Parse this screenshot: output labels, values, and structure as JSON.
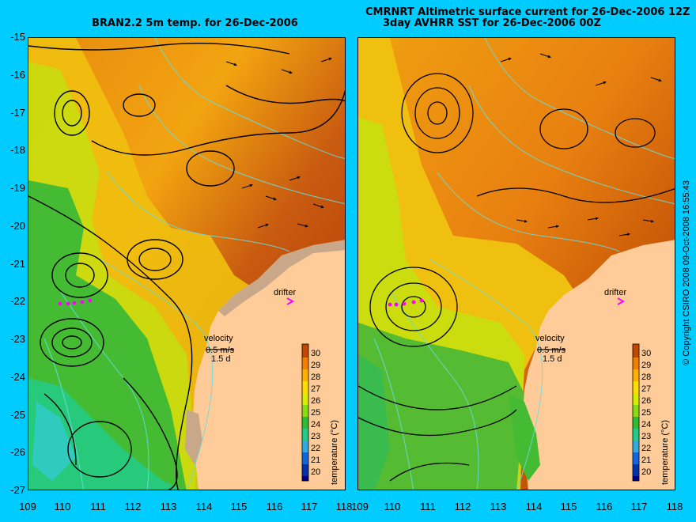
{
  "left_panel": {
    "title": "BRAN2.2 5m temp. for 26-Dec-2006",
    "velocity_label": "velocity",
    "velocity_scale": "0.5 m/s",
    "velocity_days": "1.5 d",
    "drifter_label": "drifter"
  },
  "right_panel": {
    "title_line1": "CMRNRT Altimetric surface current for 26-Dec-2006 12Z",
    "title_line2": "3day AVHRR SST for 26-Dec-2006 00Z",
    "velocity_label": "velocity",
    "velocity_scale": "0.5 m/s",
    "velocity_days": "1.5 d",
    "drifter_label": "drifter"
  },
  "colorbar": {
    "label": "temperature (°C)",
    "ticks": [
      "30",
      "29",
      "28",
      "27",
      "26",
      "25",
      "24",
      "23",
      "22",
      "21",
      "20"
    ],
    "colors": [
      "#f08000",
      "#ffb000",
      "#ffdd00",
      "#d6ee00",
      "#88dd10",
      "#33bb33",
      "#22cc88",
      "#33aadd",
      "#1166dd",
      "#0033aa",
      "#000080"
    ]
  },
  "y_axis": [
    "-15",
    "-16",
    "-17",
    "-18",
    "-19",
    "-20",
    "-21",
    "-22",
    "-23",
    "-24",
    "-25",
    "-26",
    "-27"
  ],
  "x_axis_left": [
    "109",
    "110",
    "111",
    "112",
    "113",
    "114",
    "115",
    "116",
    "117",
    "118"
  ],
  "x_axis_right": [
    "109",
    "110",
    "111",
    "112",
    "113",
    "114",
    "115",
    "116",
    "117",
    "118"
  ],
  "copyright": "© Copyright CSIRO 2008   09-Oct-2008 16:55:43",
  "colors": {
    "background": "#00ccff",
    "land": "#ffcc99",
    "coast_shelf": "#c8a888",
    "drifter": "#ff00ff",
    "bathymetry": "#66dddd"
  }
}
